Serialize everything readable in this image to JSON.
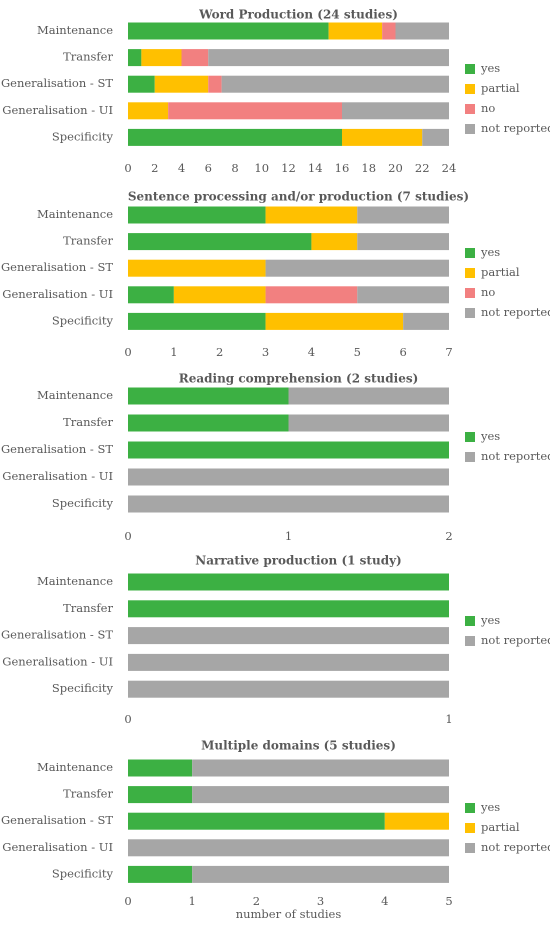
{
  "colors": {
    "yes": "#3cb043",
    "partial": "#ffc000",
    "no": "#f28080",
    "not reported": "#a6a6a6"
  },
  "chart_data": [
    {
      "type": "bar",
      "orientation": "horizontal",
      "stacked": true,
      "title": "Word Production (24 studies)",
      "categories": [
        "Maintenance",
        "Transfer",
        "Generalisation - ST",
        "Generalisation - UI",
        "Specificity"
      ],
      "series": [
        {
          "name": "yes",
          "values": [
            15,
            1,
            2,
            0,
            16
          ]
        },
        {
          "name": "partial",
          "values": [
            4,
            3,
            4,
            3,
            6
          ]
        },
        {
          "name": "no",
          "values": [
            1,
            2,
            1,
            13,
            0
          ]
        },
        {
          "name": "not reported",
          "values": [
            4,
            18,
            17,
            8,
            2
          ]
        }
      ],
      "xlim": [
        0,
        24
      ],
      "xticks": [
        0,
        2,
        4,
        6,
        8,
        10,
        12,
        14,
        16,
        18,
        20,
        22,
        24
      ],
      "xlabel": "",
      "grid": false,
      "legend": "right"
    },
    {
      "type": "bar",
      "orientation": "horizontal",
      "stacked": true,
      "title": "Sentence processing and/or production (7 studies)",
      "categories": [
        "Maintenance",
        "Transfer",
        "Generalisation - ST",
        "Generalisation - UI",
        "Specificity"
      ],
      "series": [
        {
          "name": "yes",
          "values": [
            3,
            4,
            0,
            1,
            3
          ]
        },
        {
          "name": "partial",
          "values": [
            2,
            1,
            3,
            2,
            3
          ]
        },
        {
          "name": "no",
          "values": [
            0,
            0,
            0,
            2,
            0
          ]
        },
        {
          "name": "not reported",
          "values": [
            2,
            2,
            4,
            2,
            1
          ]
        }
      ],
      "xlim": [
        0,
        7
      ],
      "xticks": [
        0,
        1,
        2,
        3,
        4,
        5,
        6,
        7
      ],
      "xlabel": "",
      "grid": false,
      "legend": "right"
    },
    {
      "type": "bar",
      "orientation": "horizontal",
      "stacked": true,
      "title": "Reading comprehension (2 studies)",
      "categories": [
        "Maintenance",
        "Transfer",
        "Generalisation - ST",
        "Generalisation - UI",
        "Specificity"
      ],
      "series": [
        {
          "name": "yes",
          "values": [
            1,
            1,
            2,
            0,
            0
          ]
        },
        {
          "name": "not reported",
          "values": [
            1,
            1,
            0,
            2,
            2
          ]
        }
      ],
      "xlim": [
        0,
        2
      ],
      "xticks": [
        0,
        1,
        2
      ],
      "xlabel": "",
      "grid": false,
      "legend": "right"
    },
    {
      "type": "bar",
      "orientation": "horizontal",
      "stacked": true,
      "title": "Narrative production (1 study)",
      "categories": [
        "Maintenance",
        "Transfer",
        "Generalisation - ST",
        "Generalisation - UI",
        "Specificity"
      ],
      "series": [
        {
          "name": "yes",
          "values": [
            1,
            1,
            0,
            0,
            0
          ]
        },
        {
          "name": "not reported",
          "values": [
            0,
            0,
            1,
            1,
            1
          ]
        }
      ],
      "xlim": [
        0,
        1
      ],
      "xticks": [
        0,
        1
      ],
      "xlabel": "",
      "grid": false,
      "legend": "right"
    },
    {
      "type": "bar",
      "orientation": "horizontal",
      "stacked": true,
      "title": "Multiple domains (5 studies)",
      "categories": [
        "Maintenance",
        "Transfer",
        "Generalisation - ST",
        "Generalisation - UI",
        "Specificity"
      ],
      "series": [
        {
          "name": "yes",
          "values": [
            1,
            1,
            4,
            0,
            1
          ]
        },
        {
          "name": "partial",
          "values": [
            0,
            0,
            1,
            0,
            0
          ]
        },
        {
          "name": "not reported",
          "values": [
            4,
            4,
            0,
            5,
            4
          ]
        }
      ],
      "xlim": [
        0,
        5
      ],
      "xticks": [
        0,
        1,
        2,
        3,
        4,
        5
      ],
      "xlabel": "number of studies",
      "grid": false,
      "legend": "right"
    }
  ]
}
